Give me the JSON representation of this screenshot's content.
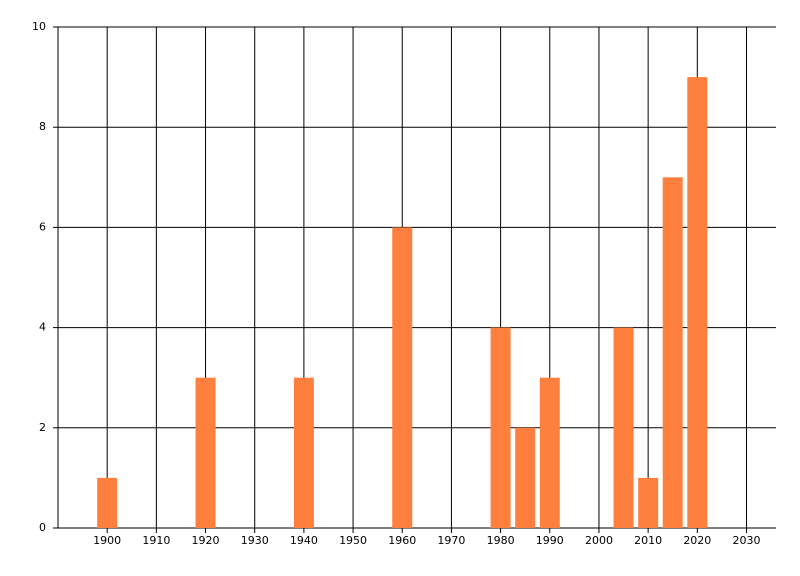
{
  "chart_data": {
    "type": "bar",
    "x": [
      1900,
      1920,
      1940,
      1960,
      1980,
      1985,
      1990,
      2005,
      2010,
      2015,
      2020
    ],
    "values": [
      1,
      3,
      3,
      6,
      4,
      2,
      3,
      4,
      1,
      7,
      9
    ],
    "color": "#ff7f3f",
    "xlim": [
      1890,
      2036
    ],
    "xticks": [
      1900,
      1910,
      1920,
      1930,
      1940,
      1950,
      1960,
      1970,
      1980,
      1990,
      2000,
      2010,
      2020,
      2030
    ],
    "ylim": [
      0,
      10
    ],
    "yticks": [
      0,
      2,
      4,
      6,
      8,
      10
    ],
    "grid": true
  }
}
